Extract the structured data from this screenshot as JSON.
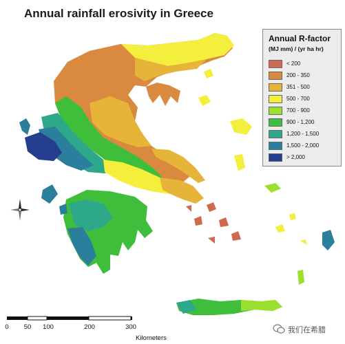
{
  "map": {
    "title": "Annual rainfall erosivity in Greece"
  },
  "legend": {
    "title": "Annual R-factor",
    "units": "(MJ mm) / (yr ha hr)",
    "classes": [
      {
        "label": "< 200",
        "color": "#cd6a4f"
      },
      {
        "label": "200 - 350",
        "color": "#d98a3e"
      },
      {
        "label": "351 - 500",
        "color": "#e7b43a"
      },
      {
        "label": "500 - 700",
        "color": "#f4ee3c"
      },
      {
        "label": "700 - 900",
        "color": "#9be02f"
      },
      {
        "label": "900 - 1,200",
        "color": "#3fbe3c"
      },
      {
        "label": "1,200 - 1,500",
        "color": "#2da88a"
      },
      {
        "label": "1,500 - 2,000",
        "color": "#2b7e9c"
      },
      {
        "label": "> 2,000",
        "color": "#253d8f"
      }
    ]
  },
  "scale": {
    "ticks": [
      "0",
      "50",
      "100",
      "200",
      "300"
    ],
    "unit": "Kilometers"
  },
  "watermark": {
    "text": "我们在希腊",
    "icon": "wechat-icon"
  },
  "compass": {
    "icon": "compass-rose-icon"
  }
}
